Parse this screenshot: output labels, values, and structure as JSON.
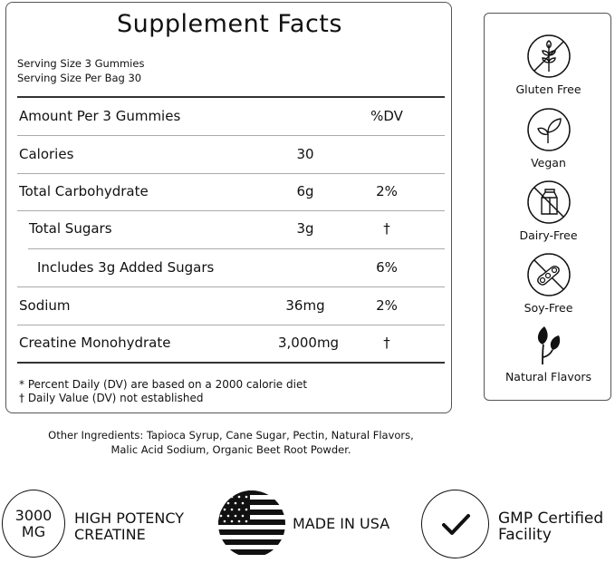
{
  "facts": {
    "title": "Supplement Facts",
    "serving_size": "Serving Size 3 Gummies",
    "servings_per_bag": "Serving Size Per Bag 30",
    "header": {
      "label": "Amount Per 3 Gummies",
      "dv": "%DV"
    },
    "rows": [
      {
        "label": "Calories",
        "amount": "30",
        "dv": ""
      },
      {
        "label": "Total Carbohydrate",
        "amount": "6g",
        "dv": "2%"
      },
      {
        "label": "Total Sugars",
        "amount": "3g",
        "dv": "†"
      },
      {
        "label": "Includes 3g Added Sugars",
        "amount": "",
        "dv": "6%"
      },
      {
        "label": "Sodium",
        "amount": "36mg",
        "dv": "2%"
      },
      {
        "label": "Creatine Monohydrate",
        "amount": "3,000mg",
        "dv": "†"
      }
    ],
    "footnote1": "* Percent Daily (DV) are based on a 2000 calorie diet",
    "footnote2": "† Daily Value (DV) not established"
  },
  "ingredients": {
    "line1": "Other Ingredients: Tapioca Syrup, Cane Sugar, Pectin, Natural Flavors,",
    "line2": "Malic Acid Sodium, Organic Beet Root Powder."
  },
  "badges": [
    {
      "label": "Gluten Free",
      "icon": "no-wheat-icon"
    },
    {
      "label": "Vegan",
      "icon": "plant-icon"
    },
    {
      "label": "Dairy-Free",
      "icon": "no-milk-icon"
    },
    {
      "label": "Soy-Free",
      "icon": "no-soy-icon"
    },
    {
      "label": "Natural Flavors",
      "icon": "leaves-icon"
    }
  ],
  "bottom": {
    "potency_badge": {
      "line1": "3000",
      "line2": "MG"
    },
    "potency_text": {
      "line1": "HIGH POTENCY",
      "line2": "CREATINE"
    },
    "usa_text": "MADE IN USA",
    "gmp_text": {
      "line1": "GMP Certified",
      "line2": "Facility"
    }
  }
}
